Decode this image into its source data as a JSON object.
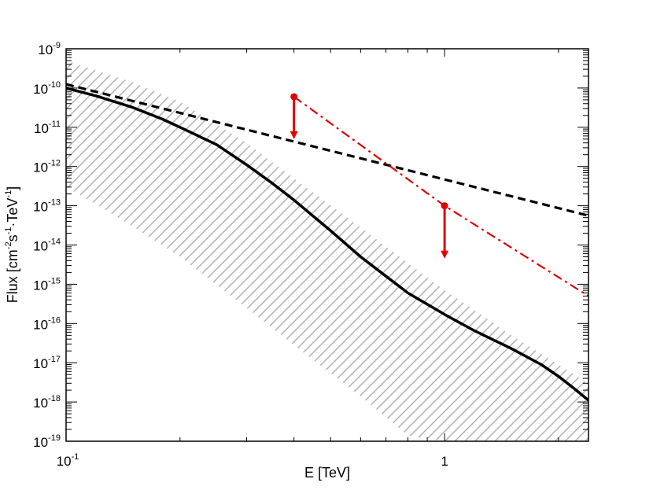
{
  "chart_data": {
    "type": "line",
    "xlabel": "E [TeV]",
    "ylabel": {
      "base": "Flux [cm",
      "exp1": "-2",
      "mid1": "s",
      "exp2": "-1",
      "mid2": "TeV",
      "exp3": "-1",
      "end": "]"
    },
    "x_scale": "log",
    "y_scale": "log",
    "xlim": [
      0.1,
      2.4
    ],
    "ylim": [
      1e-19,
      1e-09
    ],
    "x_ticks": [
      {
        "value": 0.1,
        "base": "10",
        "exp": "-1"
      },
      {
        "value": 1,
        "base": "1",
        "exp": ""
      }
    ],
    "y_ticks": [
      {
        "value": 1e-19,
        "base": "10",
        "exp": "-19"
      },
      {
        "value": 1e-18,
        "base": "10",
        "exp": "-18"
      },
      {
        "value": 1e-17,
        "base": "10",
        "exp": "-17"
      },
      {
        "value": 1e-16,
        "base": "10",
        "exp": "-16"
      },
      {
        "value": 1e-15,
        "base": "10",
        "exp": "-15"
      },
      {
        "value": 1e-14,
        "base": "10",
        "exp": "-14"
      },
      {
        "value": 1e-13,
        "base": "10",
        "exp": "-13"
      },
      {
        "value": 1e-12,
        "base": "10",
        "exp": "-12"
      },
      {
        "value": 1e-11,
        "base": "10",
        "exp": "-11"
      },
      {
        "value": 1e-10,
        "base": "10",
        "exp": "-10"
      },
      {
        "value": 1e-09,
        "base": "10",
        "exp": "-9"
      }
    ],
    "grid": false,
    "legend": "none",
    "series": [
      {
        "style": "solid",
        "color": "#000000",
        "x": [
          0.1,
          0.12,
          0.15,
          0.18,
          0.2,
          0.25,
          0.3,
          0.35,
          0.4,
          0.5,
          0.6,
          0.7,
          0.8,
          1.0,
          1.2,
          1.5,
          1.8,
          2.0,
          2.2,
          2.4
        ],
        "y": [
          1e-10,
          6.3e-11,
          3.2e-11,
          1.6e-11,
          1e-11,
          3.6e-12,
          1.1e-12,
          3.8e-13,
          1.4e-13,
          2.3e-14,
          5e-15,
          1.6e-15,
          6e-16,
          1.7e-16,
          6.5e-17,
          2.3e-17,
          9e-18,
          4.5e-18,
          2.2e-18,
          1.1e-18
        ]
      },
      {
        "style": "dashed",
        "color": "#000000",
        "x": [
          0.1,
          2.4
        ],
        "y": [
          1.25e-10,
          5.6e-14
        ]
      },
      {
        "style": "dash-dot",
        "color": "#e00000",
        "x": [
          0.4,
          1.0,
          2.4
        ],
        "y": [
          6e-11,
          1e-13,
          5e-16
        ]
      }
    ],
    "band": {
      "style": "hatched",
      "color": "#aaaaaa",
      "x": [
        0.1,
        0.12,
        0.15,
        0.2,
        0.3,
        0.4,
        0.6,
        0.8,
        1.0,
        1.2,
        1.5,
        2.0,
        2.4
      ],
      "upper": [
        5e-10,
        2.8e-10,
        1.4e-10,
        4.5e-11,
        4e-12,
        5e-13,
        2.8e-14,
        3.5e-15,
        7e-16,
        2.2e-16,
        5e-17,
        9e-18,
        3e-18
      ],
      "lower": [
        3e-13,
        1.1e-13,
        3e-14,
        5e-15,
        2.5e-16,
        2.8e-17,
        1.4e-18,
        1.4e-19,
        1e-19,
        1e-19,
        1e-19,
        1e-19,
        1e-19
      ]
    },
    "upper_limits": [
      {
        "x": 0.4,
        "y": 6e-11,
        "arrow_to": 5e-12,
        "color": "#e00000"
      },
      {
        "x": 1.0,
        "y": 1e-13,
        "arrow_to": 4.5e-15,
        "color": "#e00000"
      }
    ]
  }
}
